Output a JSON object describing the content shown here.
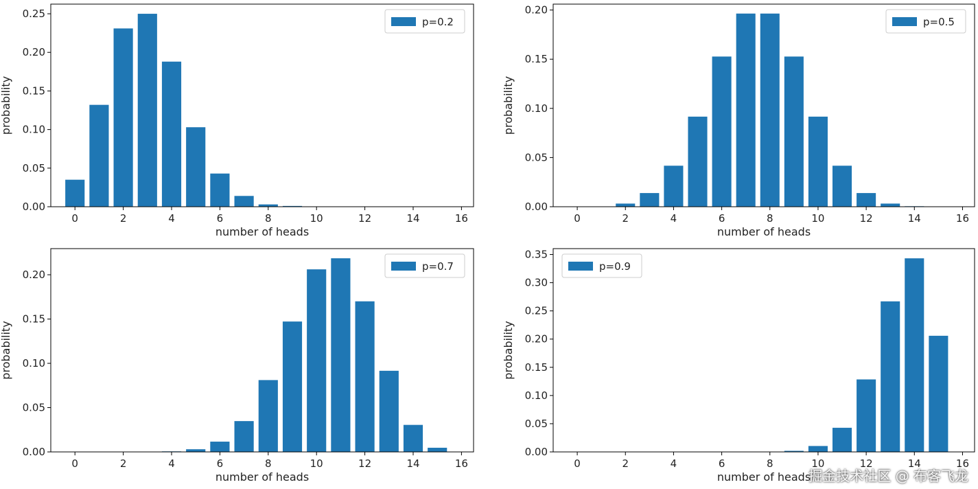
{
  "chart_data": [
    {
      "type": "bar",
      "xlabel": "number of heads",
      "ylabel": "probability",
      "legend": [
        "p=0.2"
      ],
      "legend_position": "top-right",
      "color": "#1f77b4",
      "x": [
        0,
        1,
        2,
        3,
        4,
        5,
        6,
        7,
        8,
        9,
        10,
        11,
        12,
        13,
        14,
        15
      ],
      "values": [
        0.035,
        0.132,
        0.231,
        0.25,
        0.188,
        0.103,
        0.043,
        0.014,
        0.003,
        0.001,
        0,
        0,
        0,
        0,
        0,
        0
      ],
      "xticks": [
        0,
        2,
        4,
        6,
        8,
        10,
        12,
        14,
        16
      ],
      "xtick_labels": [
        "0",
        "2",
        "4",
        "6",
        "8",
        "10",
        "12",
        "14",
        "16"
      ],
      "yticks": [
        0,
        0.05,
        0.1,
        0.15,
        0.2,
        0.25
      ],
      "ytick_labels": [
        "0.00",
        "0.05",
        "0.10",
        "0.15",
        "0.20",
        "0.25"
      ],
      "xlim": [
        -1,
        16.5
      ],
      "ylim": [
        0,
        0.2625
      ]
    },
    {
      "type": "bar",
      "xlabel": "number of heads",
      "ylabel": "probability",
      "legend": [
        "p=0.5"
      ],
      "legend_position": "top-right",
      "color": "#1f77b4",
      "x": [
        0,
        1,
        2,
        3,
        4,
        5,
        6,
        7,
        8,
        9,
        10,
        11,
        12,
        13,
        14,
        15
      ],
      "values": [
        0.0,
        0.0002,
        0.0032,
        0.0139,
        0.0417,
        0.0916,
        0.1527,
        0.1964,
        0.1964,
        0.1527,
        0.0916,
        0.0417,
        0.0139,
        0.0032,
        0.0005,
        0.0
      ],
      "xticks": [
        0,
        2,
        4,
        6,
        8,
        10,
        12,
        14,
        16
      ],
      "xtick_labels": [
        "0",
        "2",
        "4",
        "6",
        "8",
        "10",
        "12",
        "14",
        "16"
      ],
      "yticks": [
        0,
        0.05,
        0.1,
        0.15,
        0.2
      ],
      "ytick_labels": [
        "0.00",
        "0.05",
        "0.10",
        "0.15",
        "0.20"
      ],
      "xlim": [
        -1,
        16.5
      ],
      "ylim": [
        0,
        0.206
      ]
    },
    {
      "type": "bar",
      "xlabel": "number of heads",
      "ylabel": "probability",
      "legend": [
        "p=0.7"
      ],
      "legend_position": "top-right",
      "color": "#1f77b4",
      "x": [
        0,
        1,
        2,
        3,
        4,
        5,
        6,
        7,
        8,
        9,
        10,
        11,
        12,
        13,
        14,
        15
      ],
      "values": [
        0,
        0,
        0,
        0,
        0.0006,
        0.003,
        0.0116,
        0.0348,
        0.0811,
        0.1472,
        0.2061,
        0.2186,
        0.17,
        0.0916,
        0.0305,
        0.0047
      ],
      "xticks": [
        0,
        2,
        4,
        6,
        8,
        10,
        12,
        14,
        16
      ],
      "xtick_labels": [
        "0",
        "2",
        "4",
        "6",
        "8",
        "10",
        "12",
        "14",
        "16"
      ],
      "yticks": [
        0,
        0.05,
        0.1,
        0.15,
        0.2
      ],
      "ytick_labels": [
        "0.00",
        "0.05",
        "0.10",
        "0.15",
        "0.20"
      ],
      "xlim": [
        -1,
        16.5
      ],
      "ylim": [
        0,
        0.2295
      ]
    },
    {
      "type": "bar",
      "xlabel": "number of heads",
      "ylabel": "probability",
      "legend": [
        "p=0.9"
      ],
      "legend_position": "top-left",
      "color": "#1f77b4",
      "x": [
        0,
        1,
        2,
        3,
        4,
        5,
        6,
        7,
        8,
        9,
        10,
        11,
        12,
        13,
        14,
        15
      ],
      "values": [
        0,
        0,
        0,
        0,
        0,
        0,
        0,
        0,
        0.0003,
        0.0019,
        0.0105,
        0.0428,
        0.1285,
        0.2669,
        0.3432,
        0.2059
      ],
      "xticks": [
        0,
        2,
        4,
        6,
        8,
        10,
        12,
        14,
        16
      ],
      "xtick_labels": [
        "0",
        "2",
        "4",
        "6",
        "8",
        "10",
        "12",
        "14",
        "16"
      ],
      "yticks": [
        0,
        0.05,
        0.1,
        0.15,
        0.2,
        0.25,
        0.3,
        0.35
      ],
      "ytick_labels": [
        "0.00",
        "0.05",
        "0.10",
        "0.15",
        "0.20",
        "0.25",
        "0.30",
        "0.35"
      ],
      "xlim": [
        -1,
        16.5
      ],
      "ylim": [
        0,
        0.3604
      ]
    }
  ],
  "watermark": "掘金技术社区 @ 布客飞龙"
}
